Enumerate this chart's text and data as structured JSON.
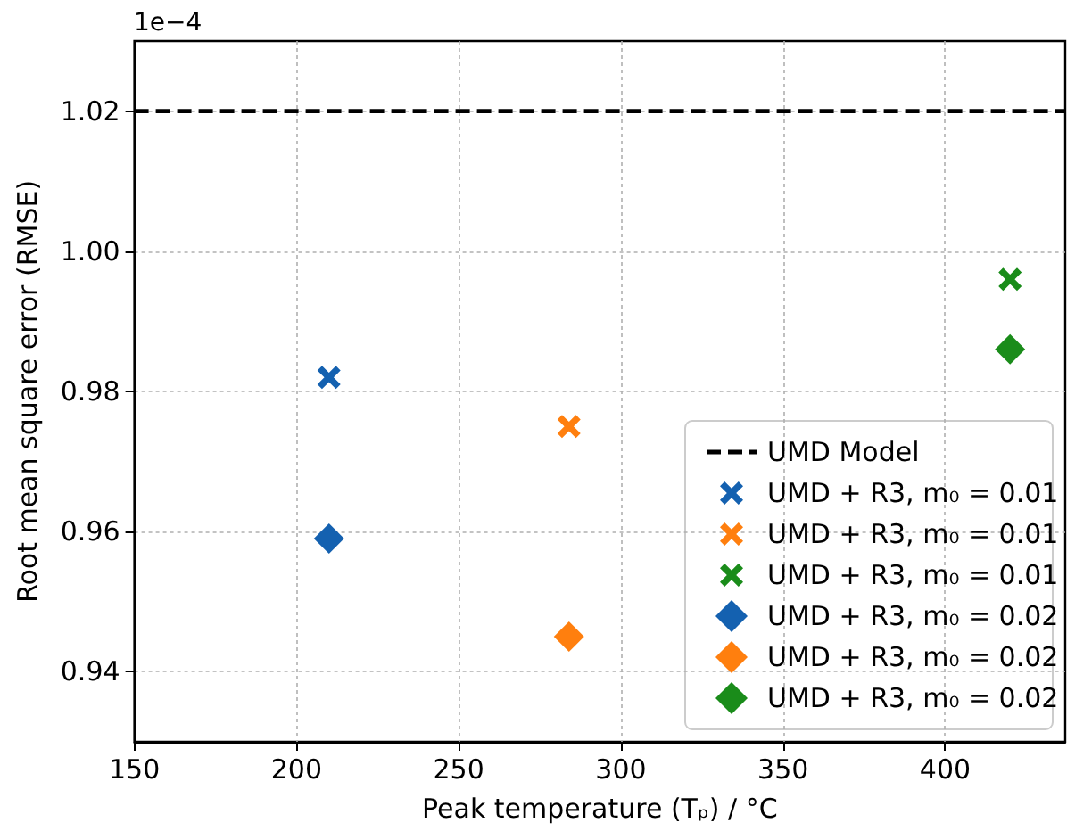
{
  "chart_data": {
    "type": "scatter",
    "xlabel": "Peak temperature (Tₚ) / °C",
    "ylabel": "Root mean square error (RMSE)",
    "annotations": [
      "1e−4"
    ],
    "xlim": [
      150,
      437
    ],
    "xticks": [
      150,
      200,
      250,
      300,
      350,
      400
    ],
    "ylim": [
      0.93,
      1.03
    ],
    "yticks": [
      0.94,
      0.96,
      0.98,
      {
        "value": 1.0,
        "label": "1.00"
      },
      1.02
    ],
    "grid": true,
    "legend": "bottom right",
    "ref_lines": [
      {
        "axis": "y",
        "value": 1.02,
        "label": "UMD Model",
        "color": "#000000",
        "line_style": "dashed"
      }
    ],
    "series": [
      {
        "name": "UMD + R3, m₀ = 0.01",
        "color": "#1461b0",
        "marker": "cross",
        "x": [
          210
        ],
        "values": [
          0.982
        ]
      },
      {
        "name": "UMD + R3, m₀ = 0.01",
        "color": "#ff7f0e",
        "marker": "cross",
        "x": [
          284
        ],
        "values": [
          0.975
        ]
      },
      {
        "name": "UMD + R3, m₀ = 0.01",
        "color": "#1a8c1a",
        "marker": "cross",
        "x": [
          420
        ],
        "values": [
          0.996
        ]
      },
      {
        "name": "UMD + R3, m₀ = 0.02",
        "color": "#1461b0",
        "marker": "diamond",
        "x": [
          210
        ],
        "values": [
          0.959
        ]
      },
      {
        "name": "UMD + R3, m₀ = 0.02",
        "color": "#ff7f0e",
        "marker": "diamond",
        "x": [
          284
        ],
        "values": [
          0.945
        ]
      },
      {
        "name": "UMD + R3, m₀ = 0.02",
        "color": "#1a8c1a",
        "marker": "diamond",
        "x": [
          420
        ],
        "values": [
          0.986
        ]
      }
    ]
  }
}
